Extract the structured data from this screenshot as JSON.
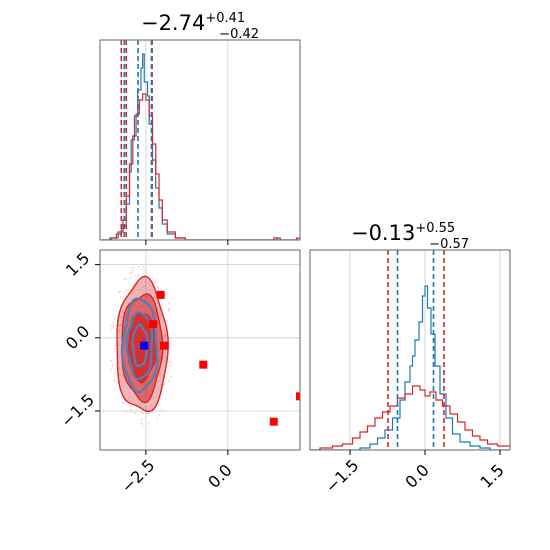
{
  "chart_data": [
    {
      "type": "histogram",
      "panel": "top-left",
      "title": {
        "value": "−2.74",
        "upper": "+0.41",
        "lower": "−0.42"
      },
      "xlim": [
        -3.9,
        2.2
      ],
      "x_ticks": [
        -2.5,
        0.0
      ],
      "y_ticks": [],
      "series": [
        {
          "color": "#1f77b4",
          "values": [
            [
              -3.85,
              0.0
            ],
            [
              -3.6,
              0.01
            ],
            [
              -3.4,
              0.03
            ],
            [
              -3.25,
              0.07
            ],
            [
              -3.1,
              0.18
            ],
            [
              -3.0,
              0.34
            ],
            [
              -2.95,
              0.5
            ],
            [
              -2.85,
              0.62
            ],
            [
              -2.75,
              0.75
            ],
            [
              -2.65,
              0.86
            ],
            [
              -2.6,
              0.93
            ],
            [
              -2.55,
              0.79
            ],
            [
              -2.45,
              0.72
            ],
            [
              -2.4,
              0.58
            ],
            [
              -2.3,
              0.4
            ],
            [
              -2.2,
              0.26
            ],
            [
              -2.1,
              0.16
            ],
            [
              -2.0,
              0.08
            ],
            [
              -1.85,
              0.03
            ],
            [
              -1.6,
              0.01
            ],
            [
              -1.3,
              0.0
            ],
            [
              1.4,
              0.0
            ],
            [
              1.5,
              0.01
            ],
            [
              1.6,
              0.0
            ],
            [
              2.2,
              0.0
            ]
          ],
          "lines": [
            -3.16,
            -2.74,
            -2.33
          ]
        },
        {
          "color": "#d62728",
          "values": [
            [
              -3.85,
              0.0
            ],
            [
              -3.55,
              0.01
            ],
            [
              -3.35,
              0.04
            ],
            [
              -3.2,
              0.1
            ],
            [
              -3.1,
              0.22
            ],
            [
              -3.0,
              0.38
            ],
            [
              -2.9,
              0.52
            ],
            [
              -2.8,
              0.63
            ],
            [
              -2.7,
              0.7
            ],
            [
              -2.6,
              0.73
            ],
            [
              -2.5,
              0.7
            ],
            [
              -2.4,
              0.62
            ],
            [
              -2.3,
              0.48
            ],
            [
              -2.2,
              0.33
            ],
            [
              -2.1,
              0.2
            ],
            [
              -2.0,
              0.1
            ],
            [
              -1.85,
              0.04
            ],
            [
              -1.6,
              0.01
            ],
            [
              -1.3,
              0.0
            ],
            [
              1.3,
              0.0
            ],
            [
              1.4,
              0.01
            ],
            [
              1.5,
              0.0
            ],
            [
              2.05,
              0.0
            ],
            [
              2.1,
              0.01
            ],
            [
              2.2,
              0.01
            ]
          ],
          "lines": [
            -3.25,
            -3.1,
            -2.31
          ]
        }
      ]
    },
    {
      "type": "contour-scatter",
      "panel": "bottom-left",
      "xlim": [
        -3.9,
        2.2
      ],
      "ylim": [
        -2.3,
        1.8
      ],
      "x_ticks": [
        -2.5,
        0.0
      ],
      "y_ticks": [
        1.5,
        0.0,
        -1.5
      ],
      "series": [
        {
          "name": "",
          "color": "#d62728",
          "kind": "filled-contours",
          "center": [
            -2.62,
            -0.18
          ],
          "radii": [
            [
              0.78,
              1.35
            ],
            [
              0.62,
              1.08
            ],
            [
              0.42,
              0.7
            ]
          ],
          "fill_opacity": [
            0.35,
            0.55,
            0.85
          ]
        },
        {
          "name": "",
          "color": "#4f7fb8",
          "kind": "contours",
          "center": [
            -2.68,
            -0.16
          ],
          "radii": [
            [
              0.52,
              0.95
            ],
            [
              0.38,
              0.68
            ],
            [
              0.22,
              0.42
            ]
          ]
        }
      ],
      "markers": [
        {
          "color": "#ff0000",
          "points": [
            [
              -2.28,
              0.28
            ],
            [
              -2.05,
              0.88
            ],
            [
              -1.95,
              -0.16
            ],
            [
              -0.75,
              -0.55
            ],
            [
              1.4,
              -1.72
            ],
            [
              2.2,
              -1.2
            ]
          ]
        },
        {
          "color": "#0000ff",
          "points": [
            [
              -2.55,
              -0.16
            ]
          ]
        }
      ]
    },
    {
      "type": "histogram",
      "panel": "bottom-right",
      "title": {
        "value": "−0.13",
        "upper": "+0.55",
        "lower": "−0.57"
      },
      "xlim": [
        -2.3,
        1.7
      ],
      "x_ticks": [
        -1.5,
        0.0,
        1.5
      ],
      "y_ticks": [],
      "series": [
        {
          "color": "#1f77b4",
          "values": [
            [
              -2.3,
              0.0
            ],
            [
              -1.4,
              0.0
            ],
            [
              -1.3,
              0.01
            ],
            [
              -1.1,
              0.03
            ],
            [
              -0.95,
              0.06
            ],
            [
              -0.8,
              0.1
            ],
            [
              -0.65,
              0.16
            ],
            [
              -0.5,
              0.25
            ],
            [
              -0.4,
              0.34
            ],
            [
              -0.3,
              0.42
            ],
            [
              -0.25,
              0.47
            ],
            [
              -0.2,
              0.55
            ],
            [
              -0.12,
              0.64
            ],
            [
              -0.05,
              0.77
            ],
            [
              0.0,
              0.82
            ],
            [
              0.05,
              0.71
            ],
            [
              0.12,
              0.58
            ],
            [
              0.2,
              0.42
            ],
            [
              0.3,
              0.28
            ],
            [
              0.42,
              0.16
            ],
            [
              0.55,
              0.08
            ],
            [
              0.7,
              0.04
            ],
            [
              0.9,
              0.02
            ],
            [
              1.1,
              0.01
            ],
            [
              1.3,
              0.0
            ],
            [
              1.7,
              0.0
            ]
          ],
          "lines": [
            -0.55,
            0.17
          ]
        },
        {
          "color": "#d62728",
          "values": [
            [
              -2.3,
              0.0
            ],
            [
              -2.1,
              0.01
            ],
            [
              -1.85,
              0.02
            ],
            [
              -1.65,
              0.03
            ],
            [
              -1.45,
              0.06
            ],
            [
              -1.3,
              0.09
            ],
            [
              -1.15,
              0.12
            ],
            [
              -1.0,
              0.16
            ],
            [
              -0.85,
              0.19
            ],
            [
              -0.7,
              0.22
            ],
            [
              -0.55,
              0.26
            ],
            [
              -0.4,
              0.28
            ],
            [
              -0.25,
              0.32
            ],
            [
              -0.1,
              0.3
            ],
            [
              0.0,
              0.27
            ],
            [
              0.1,
              0.29
            ],
            [
              0.22,
              0.25
            ],
            [
              0.35,
              0.22
            ],
            [
              0.5,
              0.18
            ],
            [
              0.65,
              0.14
            ],
            [
              0.8,
              0.1
            ],
            [
              0.95,
              0.07
            ],
            [
              1.1,
              0.05
            ],
            [
              1.25,
              0.03
            ],
            [
              1.45,
              0.02
            ],
            [
              1.7,
              0.01
            ]
          ],
          "lines": [
            -0.74,
            0.38
          ]
        }
      ]
    }
  ]
}
